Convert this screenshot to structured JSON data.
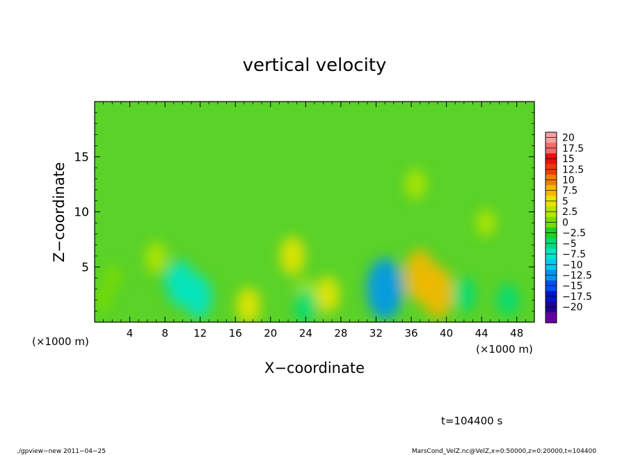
{
  "chart_data": {
    "type": "heatmap",
    "title": "vertical velocity",
    "xlabel": "X−coordinate",
    "ylabel": "Z−coordinate",
    "x_unit_left": "(×1000 m)",
    "x_unit_right": "(×1000 m)",
    "xlim": [
      0,
      50
    ],
    "ylim": [
      0,
      20
    ],
    "xticks": [
      {
        "v": 4,
        "label": "4"
      },
      {
        "v": 8,
        "label": "8"
      },
      {
        "v": 12,
        "label": "12"
      },
      {
        "v": 16,
        "label": "16"
      },
      {
        "v": 20,
        "label": "20"
      },
      {
        "v": 24,
        "label": "24"
      },
      {
        "v": 28,
        "label": "28"
      },
      {
        "v": 32,
        "label": "32"
      },
      {
        "v": 36,
        "label": "36"
      },
      {
        "v": 40,
        "label": "40"
      },
      {
        "v": 44,
        "label": "44"
      },
      {
        "v": 48,
        "label": "48"
      }
    ],
    "yticks": [
      {
        "v": 5,
        "label": "5"
      },
      {
        "v": 10,
        "label": "10"
      },
      {
        "v": 15,
        "label": "15"
      }
    ],
    "colorbar": {
      "levels": [
        "20",
        "17.5",
        "15",
        "12.5",
        "10",
        "7.5",
        "5",
        "2.5",
        "0",
        "−2.5",
        "−5",
        "−7.5",
        "−10",
        "−12.5",
        "−15",
        "−17.5",
        "−20"
      ],
      "colors": [
        "#f7a0a0",
        "#f56a6a",
        "#e81010",
        "#f03c00",
        "#f07e00",
        "#f5b800",
        "#e8e400",
        "#b4e600",
        "#78dc00",
        "#1ed21e",
        "#00dc78",
        "#00e6c8",
        "#00c8f0",
        "#0096f0",
        "#0050f0",
        "#0014c8",
        "#1e0096",
        "#6400a0"
      ],
      "value_range": [
        -20,
        20
      ]
    },
    "field_background": "#5ad228",
    "features": [
      {
        "x": 7.8,
        "z": 4.5,
        "w": -1.5
      },
      {
        "x": 9.8,
        "z": 3.5,
        "w": -6.5
      },
      {
        "x": 11.8,
        "z": 2.3,
        "w": -6
      },
      {
        "x": 7.0,
        "z": 5.8,
        "w": 3.5
      },
      {
        "x": 2.0,
        "z": 4.0,
        "w": 2
      },
      {
        "x": 1.0,
        "z": 2.0,
        "w": 1.5
      },
      {
        "x": 17.5,
        "z": 1.5,
        "w": 4.5
      },
      {
        "x": 22.5,
        "z": 6.0,
        "w": 5
      },
      {
        "x": 24.0,
        "z": 2.5,
        "w": 3
      },
      {
        "x": 24.0,
        "z": 1.5,
        "w": -4
      },
      {
        "x": 26.5,
        "z": 2.5,
        "w": 4.5
      },
      {
        "x": 33.0,
        "z": 3.0,
        "w": -10
      },
      {
        "x": 37.0,
        "z": 4.2,
        "w": 8
      },
      {
        "x": 39.0,
        "z": 2.7,
        "w": 8
      },
      {
        "x": 36.5,
        "z": 12.5,
        "w": 3
      },
      {
        "x": 42.0,
        "z": 2.5,
        "w": -4
      },
      {
        "x": 47.0,
        "z": 2.0,
        "w": -3.5
      },
      {
        "x": 44.5,
        "z": 9.0,
        "w": 2.5
      }
    ]
  },
  "annotations": {
    "time": "t=104400 s",
    "footer_left": "./gpview−new   2011−04−25",
    "footer_right": "MarsCond_VelZ.nc@VelZ,x=0:50000,z=0:20000,t=104400"
  }
}
